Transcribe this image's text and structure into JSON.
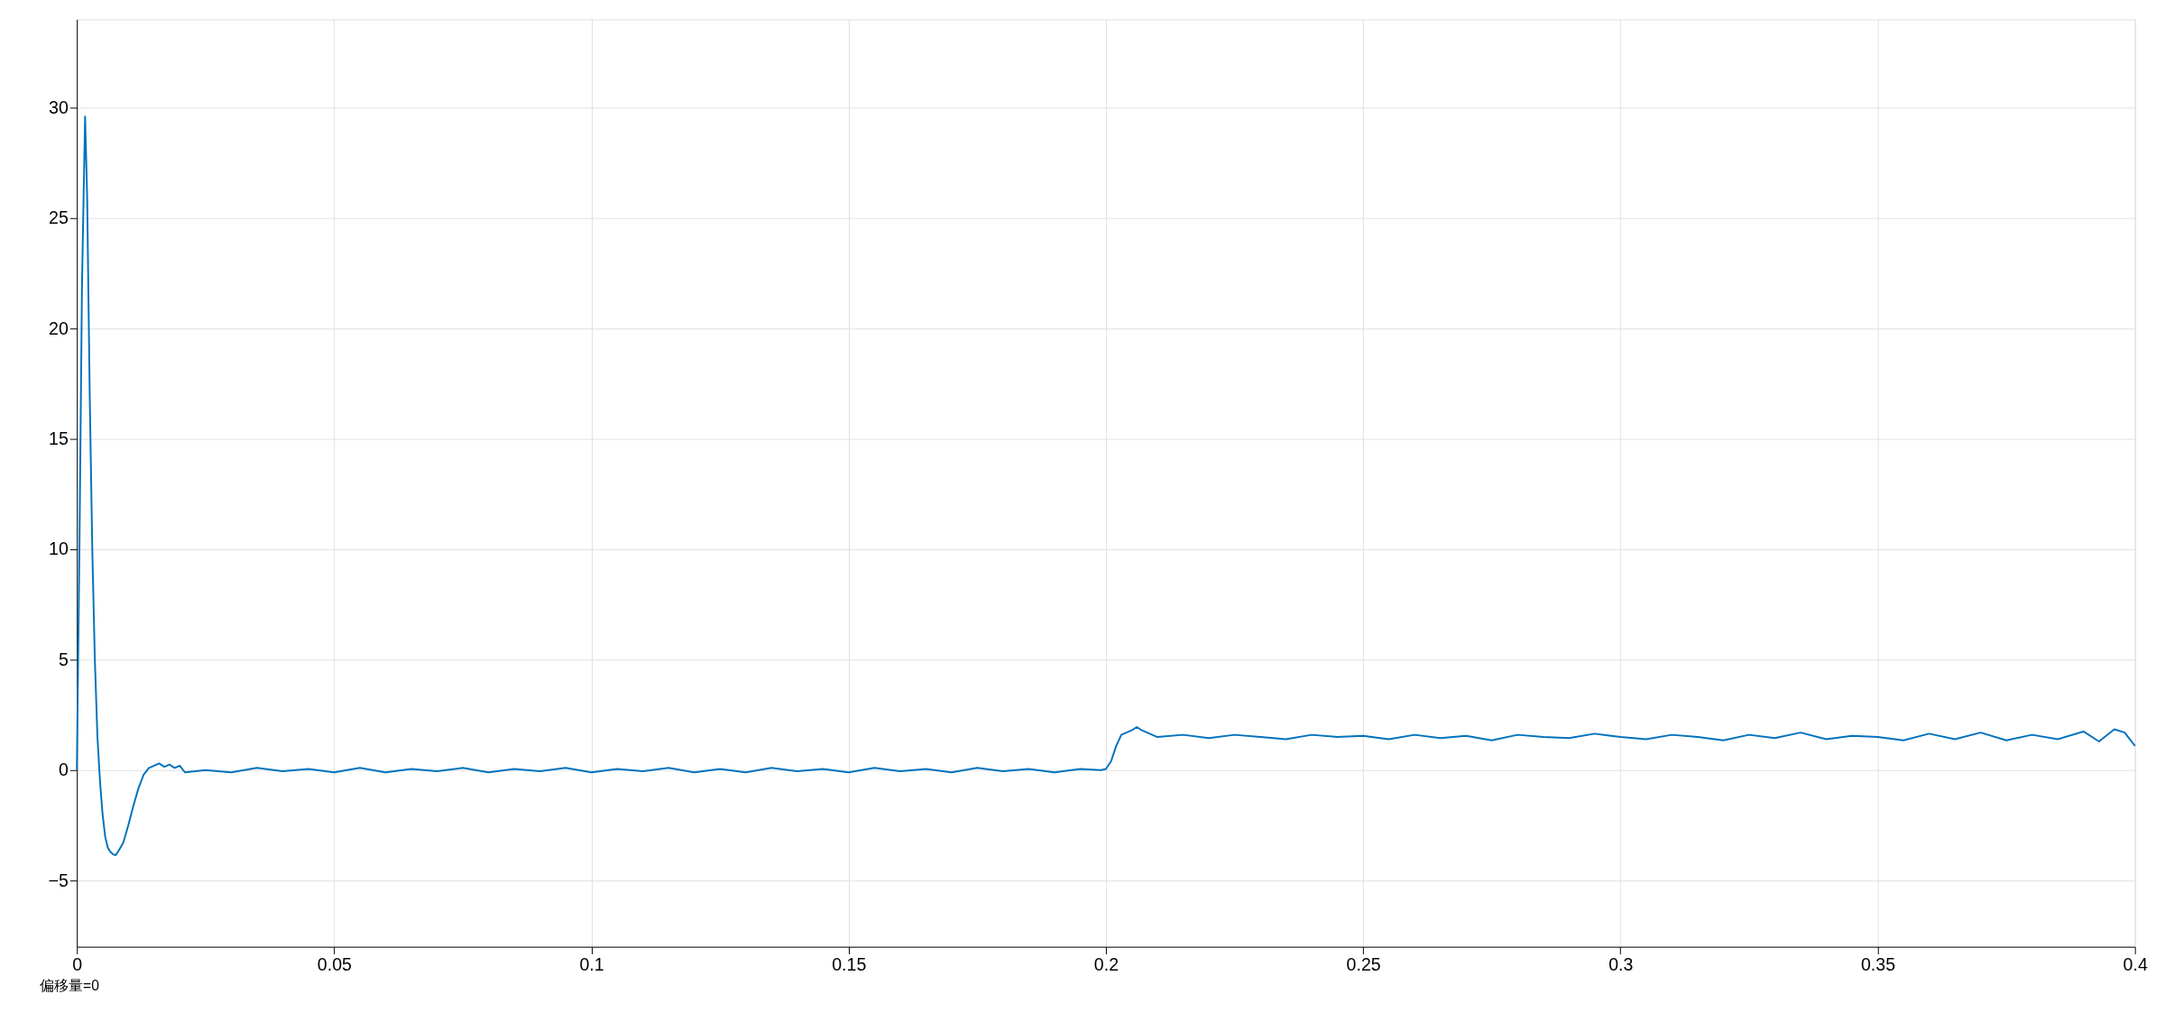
{
  "chart_data": {
    "type": "line",
    "annotations": [
      "偏移量=0"
    ],
    "xlim": [
      0,
      0.4
    ],
    "xticks": [
      0,
      0.05,
      0.1,
      0.15,
      0.2,
      0.25,
      0.3,
      0.35,
      0.4
    ],
    "ylim": [
      -8,
      34
    ],
    "yticks": [
      -5,
      0,
      5,
      10,
      15,
      20,
      25,
      30
    ],
    "grid": true,
    "marker": "none",
    "line_style": "solid",
    "series": [
      {
        "color": "#0072bd",
        "x": [
          0,
          0.0005,
          0.001,
          0.0016,
          0.002,
          0.0025,
          0.003,
          0.0035,
          0.004,
          0.0045,
          0.005,
          0.0055,
          0.006,
          0.0065,
          0.007,
          0.0075,
          0.008,
          0.009,
          0.01,
          0.011,
          0.012,
          0.013,
          0.014,
          0.015,
          0.016,
          0.017,
          0.018,
          0.019,
          0.02,
          0.021,
          0.025,
          0.03,
          0.035,
          0.04,
          0.045,
          0.05,
          0.055,
          0.06,
          0.065,
          0.07,
          0.075,
          0.08,
          0.085,
          0.09,
          0.095,
          0.1,
          0.105,
          0.11,
          0.115,
          0.12,
          0.125,
          0.13,
          0.135,
          0.14,
          0.145,
          0.15,
          0.155,
          0.16,
          0.165,
          0.17,
          0.175,
          0.18,
          0.185,
          0.19,
          0.195,
          0.199,
          0.2,
          0.201,
          0.202,
          0.203,
          0.205,
          0.206,
          0.207,
          0.208,
          0.21,
          0.215,
          0.22,
          0.225,
          0.23,
          0.235,
          0.24,
          0.245,
          0.25,
          0.255,
          0.26,
          0.265,
          0.27,
          0.275,
          0.28,
          0.285,
          0.29,
          0.295,
          0.3,
          0.305,
          0.31,
          0.315,
          0.32,
          0.325,
          0.33,
          0.335,
          0.34,
          0.345,
          0.35,
          0.355,
          0.36,
          0.365,
          0.37,
          0.375,
          0.38,
          0.385,
          0.39,
          0.393,
          0.396,
          0.398,
          0.4
        ],
        "values": [
          0,
          10,
          22,
          29.6,
          26,
          17,
          10,
          5,
          1.5,
          -0.5,
          -2,
          -3,
          -3.5,
          -3.7,
          -3.8,
          -3.85,
          -3.7,
          -3.3,
          -2.5,
          -1.6,
          -0.8,
          -0.2,
          0.1,
          0.2,
          0.3,
          0.15,
          0.25,
          0.1,
          0.2,
          -0.1,
          0,
          -0.1,
          0.1,
          -0.05,
          0.05,
          -0.1,
          0.1,
          -0.1,
          0.05,
          -0.05,
          0.1,
          -0.1,
          0.05,
          -0.05,
          0.1,
          -0.1,
          0.05,
          -0.05,
          0.1,
          -0.1,
          0.05,
          -0.1,
          0.1,
          -0.05,
          0.05,
          -0.1,
          0.1,
          -0.05,
          0.05,
          -0.1,
          0.1,
          -0.05,
          0.05,
          -0.1,
          0.05,
          0,
          0.05,
          0.4,
          1.1,
          1.6,
          1.8,
          1.95,
          1.8,
          1.7,
          1.5,
          1.6,
          1.45,
          1.6,
          1.5,
          1.4,
          1.6,
          1.5,
          1.55,
          1.4,
          1.6,
          1.45,
          1.55,
          1.35,
          1.6,
          1.5,
          1.45,
          1.65,
          1.5,
          1.4,
          1.6,
          1.5,
          1.35,
          1.6,
          1.45,
          1.7,
          1.4,
          1.55,
          1.5,
          1.35,
          1.65,
          1.4,
          1.7,
          1.35,
          1.6,
          1.4,
          1.75,
          1.3,
          1.85,
          1.7,
          1.1
        ]
      }
    ]
  }
}
